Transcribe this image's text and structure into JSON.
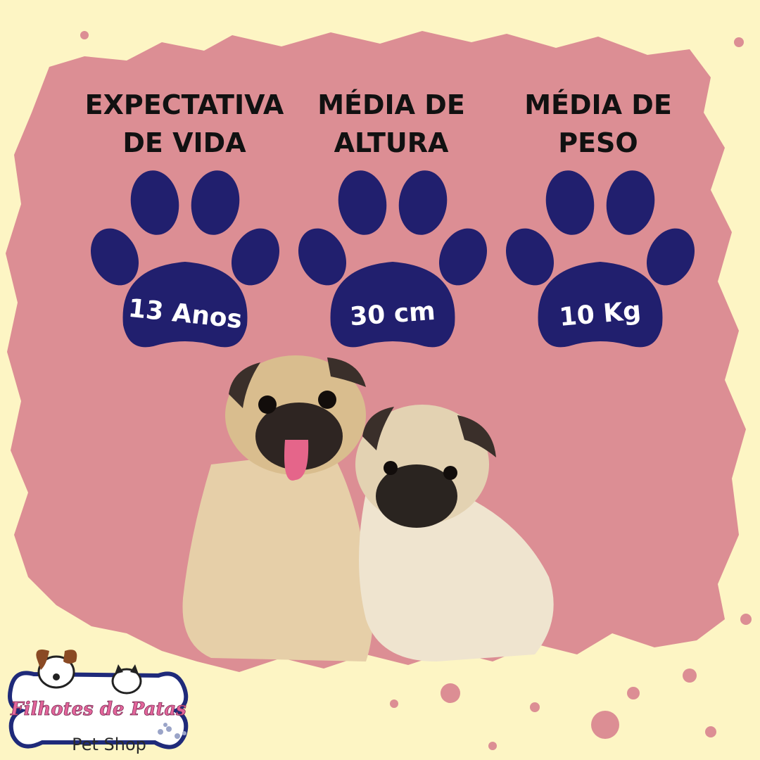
{
  "colors": {
    "background": "#fdf5c4",
    "splash": "#dc8e94",
    "paw": "#211f6e",
    "paw_text": "#ffffff",
    "title_text": "#111111"
  },
  "stats": [
    {
      "title_line1": "EXPECTATIVA",
      "title_line2": "DE VIDA",
      "value": "13 Anos",
      "icon": "paw-print-icon"
    },
    {
      "title_line1": "MÉDIA DE",
      "title_line2": "ALTURA",
      "value": "30 cm",
      "icon": "paw-print-icon"
    },
    {
      "title_line1": "MÉDIA DE",
      "title_line2": "PESO",
      "value": "10 Kg",
      "icon": "paw-print-icon"
    }
  ],
  "photo": {
    "subject": "pug-dogs-photo"
  },
  "logo": {
    "brand": "Filhotes de Patas",
    "tagline": "Pet Shop",
    "icon": "bone-logo-icon"
  }
}
